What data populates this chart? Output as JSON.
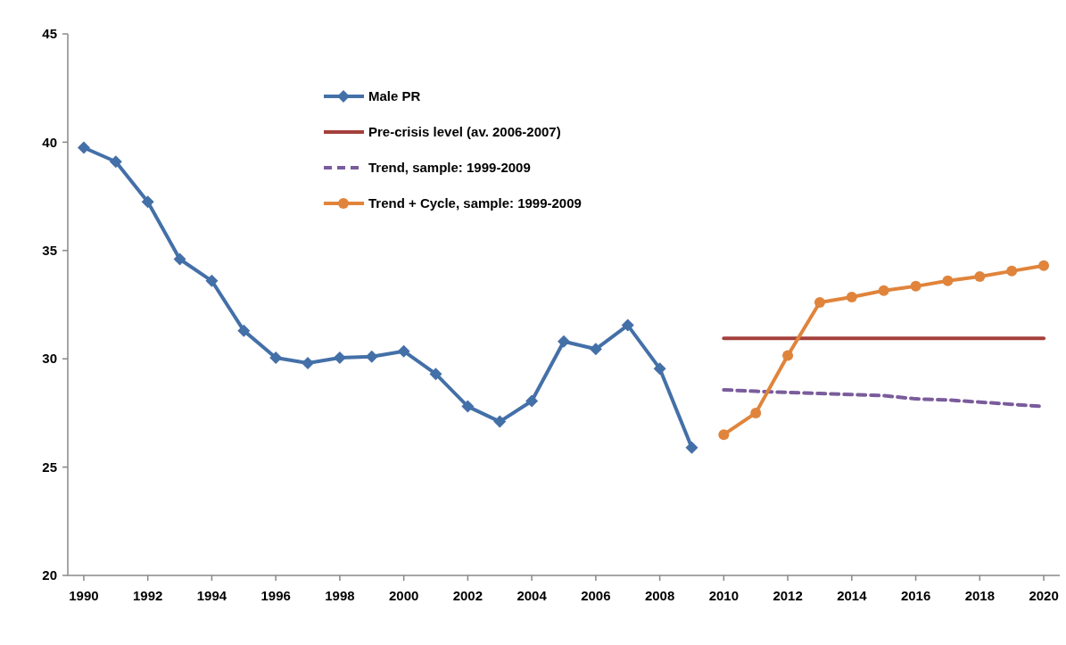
{
  "chart_data": {
    "type": "line",
    "xlim": [
      1989.5,
      2020.5
    ],
    "xticks": [
      1990,
      1992,
      1994,
      1996,
      1998,
      2000,
      2002,
      2004,
      2006,
      2008,
      2010,
      2012,
      2014,
      2016,
      2018,
      2020
    ],
    "ylim": [
      20,
      45
    ],
    "yticks": [
      20,
      25,
      30,
      35,
      40,
      45
    ],
    "grid": false,
    "legend": "top",
    "series": [
      {
        "name": "Male PR",
        "color": "#4470a8",
        "marker": "diamond",
        "line_style": "solid",
        "x": [
          1990,
          1991,
          1992,
          1993,
          1994,
          1995,
          1996,
          1997,
          1998,
          1999,
          2000,
          2001,
          2002,
          2003,
          2004,
          2005,
          2006,
          2007,
          2008,
          2009
        ],
        "values": [
          39.75,
          39.1,
          37.25,
          34.6,
          33.6,
          31.3,
          30.05,
          29.8,
          30.05,
          30.1,
          30.35,
          29.3,
          27.8,
          27.1,
          28.05,
          30.8,
          30.45,
          31.55,
          29.55,
          25.9
        ]
      },
      {
        "name": "Pre-crisis level (av. 2006-2007)",
        "color": "#a5403d",
        "marker": "none",
        "line_style": "solid",
        "x": [
          2010,
          2020
        ],
        "values": [
          30.95,
          30.95
        ]
      },
      {
        "name": "Trend, sample: 1999-2009",
        "color": "#7a5c9c",
        "marker": "none",
        "line_style": "dashed",
        "x": [
          2010,
          2011,
          2012,
          2013,
          2014,
          2015,
          2016,
          2017,
          2018,
          2019,
          2020
        ],
        "values": [
          28.57,
          28.5,
          28.45,
          28.4,
          28.35,
          28.3,
          28.15,
          28.1,
          28.0,
          27.9,
          27.8
        ]
      },
      {
        "name": "Trend + Cycle, sample: 1999-2009",
        "color": "#e0843c",
        "marker": "circle",
        "line_style": "solid",
        "x": [
          2010,
          2011,
          2012,
          2013,
          2014,
          2015,
          2016,
          2017,
          2018,
          2019,
          2020
        ],
        "values": [
          26.5,
          27.5,
          30.15,
          32.6,
          32.85,
          33.15,
          33.35,
          33.6,
          33.8,
          34.05,
          34.3
        ]
      }
    ]
  }
}
